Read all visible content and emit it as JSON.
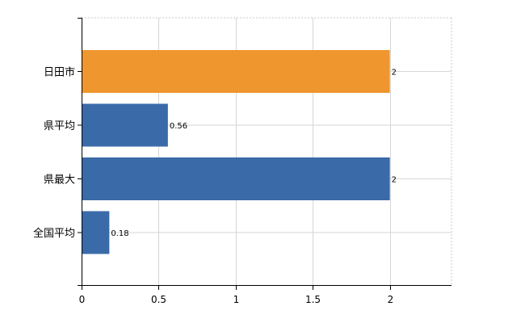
{
  "chart_data": {
    "type": "bar",
    "orientation": "horizontal",
    "categories": [
      "日田市",
      "県平均",
      "県最大",
      "全国平均"
    ],
    "values": [
      2,
      0.56,
      2,
      0.18
    ],
    "data_labels": [
      "2",
      "0.56",
      "2",
      "0.18"
    ],
    "bar_colors": [
      "#f0962e",
      "#3a6aa8",
      "#3a6aa8",
      "#3a6aa8"
    ],
    "xlim": [
      0,
      2.4
    ],
    "xticks": [
      0,
      0.5,
      1,
      1.5,
      2
    ],
    "xtick_labels": [
      "0",
      "0.5",
      "1",
      "1.5",
      "2"
    ],
    "title": "",
    "xlabel": "",
    "ylabel": "",
    "grid": true,
    "legend": "none"
  }
}
